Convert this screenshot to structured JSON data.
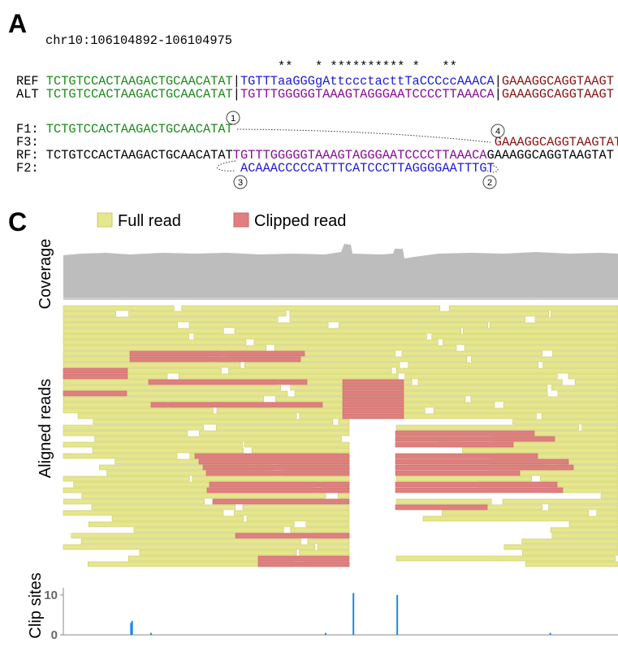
{
  "panel_a": {
    "label": "A",
    "region": "chr10:106104892-106104975",
    "stars": "**   * ********** *   **",
    "ref": {
      "label": "REF",
      "left": "TCTGTCCACTAAGACTGCAACATAT",
      "sep1": "|",
      "middle": "TGTTTaaGGGgAttccctacttTaCCCccAAACA",
      "sep2": "|",
      "right": "GAAAGGCAGGTAAGT"
    },
    "alt": {
      "label": "ALT",
      "left": "TCTGTCCACTAAGACTGCAACATAT",
      "sep1": "|",
      "middle": "TGTTTGGGGGTAAAGTAGGGAATCCCCTTAAACA",
      "sep2": "|",
      "right": "GAAAGGCAGGTAAGT"
    },
    "f1": {
      "label": "F1:",
      "seq": "TCTGTCCACTAAGACTGCAACATAT"
    },
    "f3": {
      "label": "F3:",
      "seq": "GAAAGGCAGGTAAGTAT"
    },
    "rf": {
      "label": "RF:",
      "left": "TCTGTCCACTAAGACTGCAACATAT",
      "middle": "TGTTTGGGGGTAAAGTAGGGAATCCCCTTAAACA",
      "right": "GAAAGGCAGGTAAGTAT"
    },
    "f2": {
      "label": "F2:",
      "seq": "ACAAACCCCCATTTCATCCCTTAGGGGAATTTGT"
    },
    "steps": [
      "1",
      "2",
      "3",
      "4"
    ]
  },
  "panel_c": {
    "label": "C",
    "legend": [
      "Full read",
      "Clipped read"
    ],
    "coverage_label": "Coverage",
    "reads_label": "Aligned reads",
    "clip_sites": {
      "type": "bar",
      "ylabel": "Clip sites",
      "x": [
        12.2,
        12.4,
        15.8,
        47.3,
        52.3,
        60.2,
        87.8
      ],
      "values": [
        3,
        3.5,
        0.5,
        0.5,
        10.5,
        10,
        0.5
      ],
      "xlim": [
        0,
        100
      ],
      "ylim": [
        0,
        11
      ],
      "yticks": [
        0,
        10
      ],
      "color": "#1e88e5"
    }
  }
}
